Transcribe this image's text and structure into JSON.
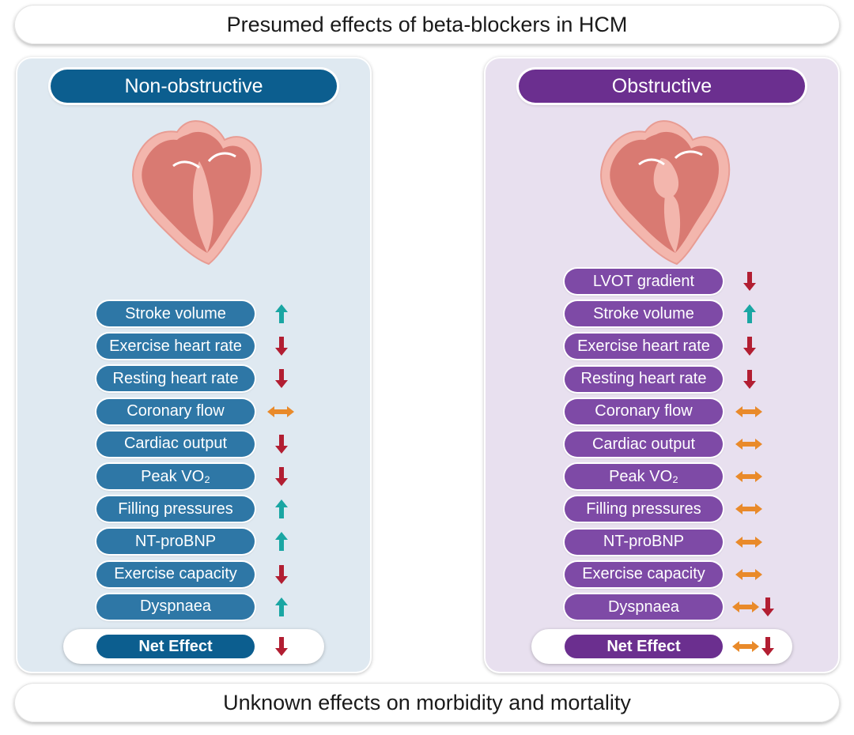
{
  "title": "Presumed effects of beta-blockers in HCM",
  "footer": "Unknown effects on morbidity and mortality",
  "colors": {
    "up": "#1aa6a3",
    "down": "#b21e32",
    "neutral": "#e98a2a",
    "non_obstructive": "#0c5e8f",
    "obstructive": "#6b2f8f"
  },
  "panels": [
    {
      "id": "non",
      "title": "Non-obstructive",
      "rows": [
        {
          "label": "Stroke volume",
          "effect": "up"
        },
        {
          "label": "Exercise heart rate",
          "effect": "down"
        },
        {
          "label": "Resting heart rate",
          "effect": "down"
        },
        {
          "label": "Coronary flow",
          "effect": "neutral"
        },
        {
          "label": "Cardiac output",
          "effect": "down"
        },
        {
          "label": "Peak VO₂",
          "effect": "down"
        },
        {
          "label": "Filling pressures",
          "effect": "up"
        },
        {
          "label": "NT-proBNP",
          "effect": "up"
        },
        {
          "label": "Exercise capacity",
          "effect": "down"
        },
        {
          "label": "Dyspnaea",
          "effect": "up"
        }
      ],
      "net_label": "Net Effect",
      "net_effect": "down"
    },
    {
      "id": "obs",
      "title": "Obstructive",
      "rows": [
        {
          "label": "LVOT gradient",
          "effect": "down"
        },
        {
          "label": "Stroke volume",
          "effect": "up"
        },
        {
          "label": "Exercise heart rate",
          "effect": "down"
        },
        {
          "label": "Resting heart rate",
          "effect": "down"
        },
        {
          "label": "Coronary flow",
          "effect": "neutral"
        },
        {
          "label": "Cardiac output",
          "effect": "neutral"
        },
        {
          "label": "Peak VO₂",
          "effect": "neutral"
        },
        {
          "label": "Filling pressures",
          "effect": "neutral"
        },
        {
          "label": "NT-proBNP",
          "effect": "neutral"
        },
        {
          "label": "Exercise capacity",
          "effect": "neutral"
        },
        {
          "label": "Dyspnaea",
          "effect": "neutral-down"
        }
      ],
      "net_label": "Net Effect",
      "net_effect": "neutral-down"
    }
  ]
}
